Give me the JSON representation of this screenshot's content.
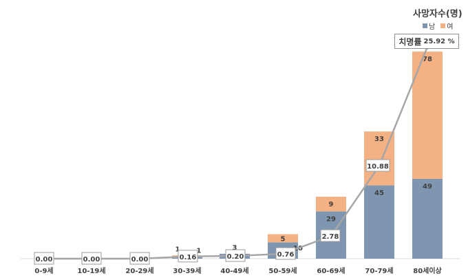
{
  "chart_data": {
    "type": "bar",
    "stacked": true,
    "categories": [
      "0-9세",
      "10-19세",
      "20-29세",
      "30-39세",
      "40-49세",
      "50-59세",
      "60-69세",
      "70-79세",
      "80세이상"
    ],
    "series": [
      {
        "name": "남",
        "color": "#7f96b0",
        "values": [
          0,
          0,
          0,
          1,
          3,
          10,
          29,
          45,
          49
        ]
      },
      {
        "name": "여",
        "color": "#f4b183",
        "values": [
          0,
          0,
          0,
          1,
          0,
          5,
          9,
          33,
          78
        ]
      }
    ],
    "line": {
      "name": "치명률",
      "color": "#a6a6a6",
      "values": [
        "0.00",
        "0.00",
        "0.00",
        "0.16",
        "0.20",
        "0.76",
        "2.78",
        "10.88",
        "25.92"
      ]
    },
    "ylabel": "사망자수(명)",
    "callout": {
      "label": "치명률",
      "value": "25.92 %"
    },
    "legend_position": "top-right"
  }
}
